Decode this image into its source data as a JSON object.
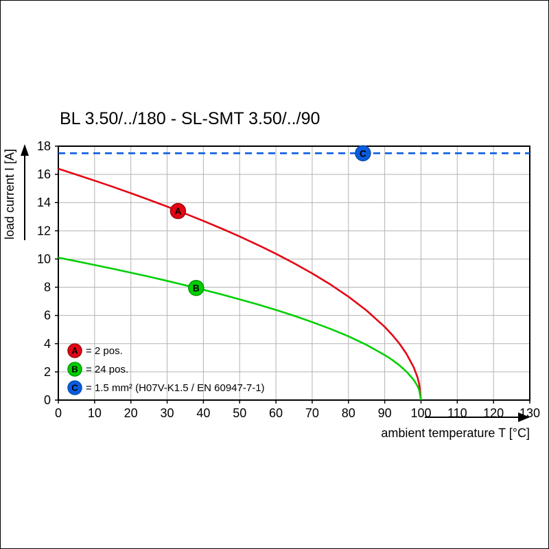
{
  "chart_data": {
    "type": "line",
    "title": "BL 3.50/../180 - SL-SMT 3.50/../90",
    "xlabel": "ambient temperature T [°C]",
    "ylabel": "load current I [A]",
    "xlim": [
      0,
      130
    ],
    "ylim": [
      0,
      18
    ],
    "xticks": [
      0,
      10,
      20,
      30,
      40,
      50,
      60,
      70,
      80,
      90,
      100,
      110,
      120,
      130
    ],
    "yticks": [
      0,
      2,
      4,
      6,
      8,
      10,
      12,
      14,
      16,
      18
    ],
    "grid": true,
    "legend_position": "lower-left-inside",
    "series": [
      {
        "name": "A",
        "legend": "= 2 pos.",
        "color": "#e30613",
        "edge_color": "#a00510",
        "style": "solid",
        "marker_at": [
          33,
          13.4
        ],
        "points": [
          [
            0,
            16.4
          ],
          [
            5,
            15.98
          ],
          [
            10,
            15.56
          ],
          [
            15,
            15.12
          ],
          [
            20,
            14.67
          ],
          [
            25,
            14.2
          ],
          [
            30,
            13.72
          ],
          [
            35,
            13.22
          ],
          [
            40,
            12.7
          ],
          [
            45,
            12.16
          ],
          [
            50,
            11.6
          ],
          [
            55,
            11.0
          ],
          [
            60,
            10.37
          ],
          [
            65,
            9.7
          ],
          [
            70,
            8.98
          ],
          [
            75,
            8.2
          ],
          [
            80,
            7.33
          ],
          [
            85,
            6.35
          ],
          [
            90,
            5.19
          ],
          [
            92,
            4.64
          ],
          [
            94,
            4.02
          ],
          [
            96,
            3.28
          ],
          [
            98,
            2.32
          ],
          [
            99,
            1.64
          ],
          [
            99.5,
            1.16
          ],
          [
            100,
            0
          ]
        ]
      },
      {
        "name": "B",
        "legend": "= 24 pos.",
        "color": "#00cf00",
        "edge_color": "#009900",
        "style": "solid",
        "marker_at": [
          38,
          7.95
        ],
        "points": [
          [
            0,
            10.1
          ],
          [
            5,
            9.84
          ],
          [
            10,
            9.58
          ],
          [
            15,
            9.31
          ],
          [
            20,
            9.03
          ],
          [
            25,
            8.75
          ],
          [
            30,
            8.45
          ],
          [
            35,
            8.14
          ],
          [
            40,
            7.82
          ],
          [
            45,
            7.49
          ],
          [
            50,
            7.14
          ],
          [
            55,
            6.78
          ],
          [
            60,
            6.39
          ],
          [
            65,
            5.98
          ],
          [
            70,
            5.53
          ],
          [
            75,
            5.05
          ],
          [
            80,
            4.52
          ],
          [
            85,
            3.91
          ],
          [
            90,
            3.19
          ],
          [
            92,
            2.86
          ],
          [
            94,
            2.47
          ],
          [
            96,
            2.02
          ],
          [
            98,
            1.43
          ],
          [
            99,
            1.01
          ],
          [
            99.5,
            0.71
          ],
          [
            100,
            0
          ]
        ]
      },
      {
        "name": "C",
        "legend": "= 1.5 mm² (H07V-K1.5 / EN 60947-7-1)",
        "color": "#0a5ce0",
        "edge_color": "#084fae",
        "style": "dashed",
        "marker_at": [
          84,
          17.5
        ],
        "points": [
          [
            0,
            17.5
          ],
          [
            130,
            17.5
          ]
        ]
      }
    ]
  }
}
